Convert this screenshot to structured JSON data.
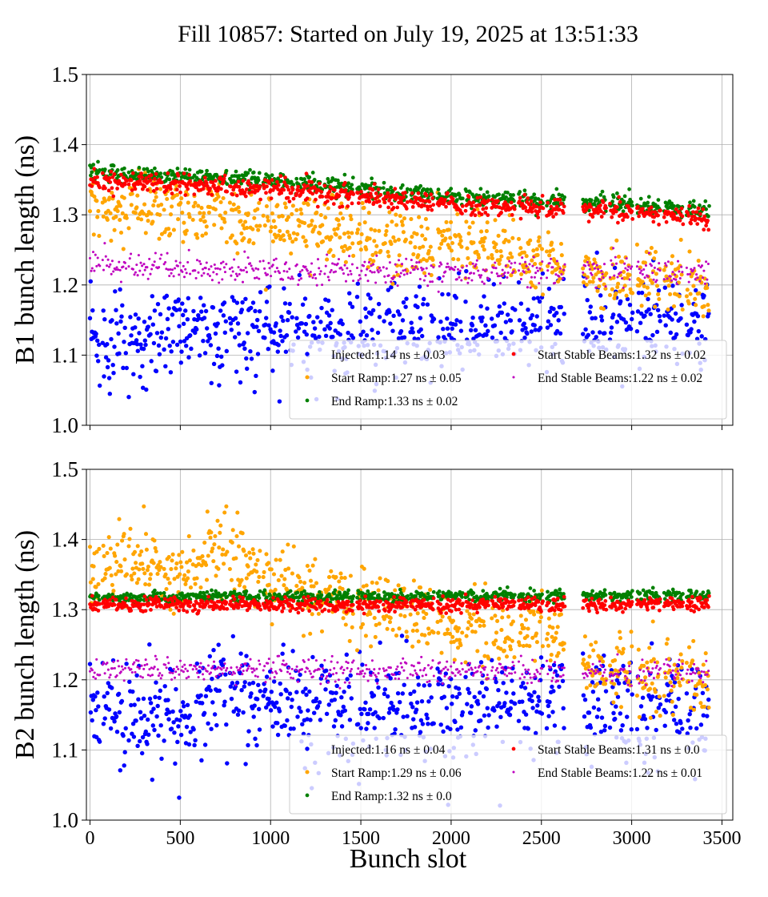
{
  "figure": {
    "title": "Fill 10857: Started on July 19, 2025 at 13:51:33",
    "xlabel": "Bunch slot"
  },
  "colors": {
    "Injected": "#0000ff",
    "Start Ramp": "#ffa500",
    "End Ramp": "#008000",
    "Start Stable Beams": "#ff0000",
    "End Stable Beams": "#bf00bf",
    "grid": "#b0b0b0"
  },
  "chart_data": [
    {
      "type": "scatter",
      "ylabel": "B1 bunch length (ns)",
      "xlim": [
        -20,
        3560
      ],
      "ylim": [
        1.0,
        1.5
      ],
      "x_ticks": [
        0,
        500,
        1000,
        1500,
        2000,
        2500,
        3000,
        3500
      ],
      "y_ticks": [
        "1.0",
        "1.1",
        "1.2",
        "1.3",
        "1.4",
        "1.5"
      ],
      "grid": true,
      "legend_position": "lower right",
      "bunch_trains": [
        [
          0,
          55
        ],
        [
          70,
          205
        ],
        [
          215,
          400
        ],
        [
          410,
          560
        ],
        [
          570,
          760
        ],
        [
          775,
          945
        ],
        [
          960,
          1130
        ],
        [
          1140,
          1290
        ],
        [
          1300,
          1460
        ],
        [
          1480,
          1610
        ],
        [
          1625,
          1760
        ],
        [
          1775,
          1905
        ],
        [
          1925,
          2065
        ],
        [
          2080,
          2210
        ],
        [
          2225,
          2355
        ],
        [
          2375,
          2510
        ],
        [
          2530,
          2630
        ],
        [
          2730,
          2860
        ],
        [
          2880,
          3005
        ],
        [
          3030,
          3160
        ],
        [
          3180,
          3285
        ],
        [
          3305,
          3430
        ]
      ],
      "series": [
        {
          "name": "Injected",
          "legend_label": "Injected:1.14 ns ± 0.03",
          "marker_size": 3.2,
          "x_start": [
            0,
            530,
            1000,
            1500,
            2000,
            2500,
            3000,
            3430
          ],
          "y_start": [
            1.12,
            1.14,
            1.14,
            1.13,
            1.14,
            1.15,
            1.15,
            1.14
          ],
          "spread": 0.03
        },
        {
          "name": "Start Ramp",
          "legend_label": "Start Ramp:1.27 ns ± 0.05",
          "marker_size": 3.0,
          "x_start": [
            0,
            300,
            700,
            1000,
            1300,
            1600,
            2000,
            2300,
            2600,
            2900,
            3200,
            3430
          ],
          "y_start": [
            1.31,
            1.31,
            1.3,
            1.29,
            1.28,
            1.26,
            1.26,
            1.25,
            1.23,
            1.21,
            1.21,
            1.19
          ],
          "spread": 0.022
        },
        {
          "name": "End Ramp",
          "legend_label": "End Ramp:1.33 ns ± 0.02",
          "marker_size": 2.8,
          "x_start": [
            0,
            1000,
            2000,
            3000,
            3430
          ],
          "y_start": [
            1.36,
            1.35,
            1.325,
            1.315,
            1.305
          ],
          "spread": 0.006
        },
        {
          "name": "Start Stable Beams",
          "legend_label": "Start Stable Beams:1.32 ns ± 0.02",
          "marker_size": 2.8,
          "x_start": [
            0,
            1000,
            2000,
            3000,
            3430
          ],
          "y_start": [
            1.348,
            1.338,
            1.315,
            1.305,
            1.293
          ],
          "spread": 0.007
        },
        {
          "name": "End Stable Beams",
          "legend_label": "End Stable Beams:1.22 ns ± 0.02",
          "marker_size": 1.8,
          "x_start": [
            0,
            1000,
            2000,
            3000,
            3430
          ],
          "y_start": [
            1.23,
            1.222,
            1.218,
            1.22,
            1.218
          ],
          "spread": 0.01
        }
      ]
    },
    {
      "type": "scatter",
      "ylabel": "B2 bunch length (ns)",
      "xlim": [
        -20,
        3560
      ],
      "ylim": [
        1.0,
        1.5
      ],
      "x_ticks": [
        0,
        500,
        1000,
        1500,
        2000,
        2500,
        3000,
        3500
      ],
      "y_ticks": [
        "1.0",
        "1.1",
        "1.2",
        "1.3",
        "1.4",
        "1.5"
      ],
      "grid": true,
      "legend_position": "lower right",
      "bunch_trains": [
        [
          0,
          55
        ],
        [
          70,
          205
        ],
        [
          215,
          400
        ],
        [
          410,
          560
        ],
        [
          570,
          760
        ],
        [
          775,
          945
        ],
        [
          960,
          1130
        ],
        [
          1140,
          1290
        ],
        [
          1300,
          1460
        ],
        [
          1480,
          1610
        ],
        [
          1625,
          1760
        ],
        [
          1775,
          1905
        ],
        [
          1925,
          2065
        ],
        [
          2080,
          2210
        ],
        [
          2225,
          2355
        ],
        [
          2375,
          2510
        ],
        [
          2530,
          2630
        ],
        [
          2730,
          2860
        ],
        [
          2880,
          3005
        ],
        [
          3030,
          3160
        ],
        [
          3180,
          3285
        ],
        [
          3305,
          3430
        ]
      ],
      "series": [
        {
          "name": "Injected",
          "legend_label": "Injected:1.16 ns ± 0.04",
          "marker_size": 3.2,
          "x_start": [
            0,
            500,
            700,
            1000,
            1500,
            2000,
            2500,
            3000,
            3430
          ],
          "y_start": [
            1.15,
            1.14,
            1.2,
            1.17,
            1.16,
            1.16,
            1.17,
            1.16,
            1.15
          ],
          "spread": 0.035
        },
        {
          "name": "Start Ramp",
          "legend_label": "Start Ramp:1.29 ns ± 0.06",
          "marker_size": 3.0,
          "x_start": [
            0,
            300,
            500,
            750,
            1000,
            1300,
            1600,
            2000,
            2300,
            2500,
            2800,
            3100,
            3430
          ],
          "y_start": [
            1.36,
            1.37,
            1.35,
            1.39,
            1.34,
            1.32,
            1.3,
            1.28,
            1.26,
            1.28,
            1.22,
            1.21,
            1.2
          ],
          "spread": 0.025
        },
        {
          "name": "End Ramp",
          "legend_label": "End Ramp:1.32 ns ± 0.0",
          "marker_size": 2.8,
          "x_start": [
            0,
            3430
          ],
          "y_start": [
            1.318,
            1.32
          ],
          "spread": 0.004
        },
        {
          "name": "Start Stable Beams",
          "legend_label": "Start Stable Beams:1.31 ns ± 0.0",
          "marker_size": 2.8,
          "x_start": [
            0,
            3430
          ],
          "y_start": [
            1.307,
            1.308
          ],
          "spread": 0.005
        },
        {
          "name": "End Stable Beams",
          "legend_label": "End Stable Beams:1.22 ns ± 0.01",
          "marker_size": 1.8,
          "x_start": [
            0,
            3430
          ],
          "y_start": [
            1.215,
            1.21
          ],
          "spread": 0.009
        }
      ]
    }
  ]
}
